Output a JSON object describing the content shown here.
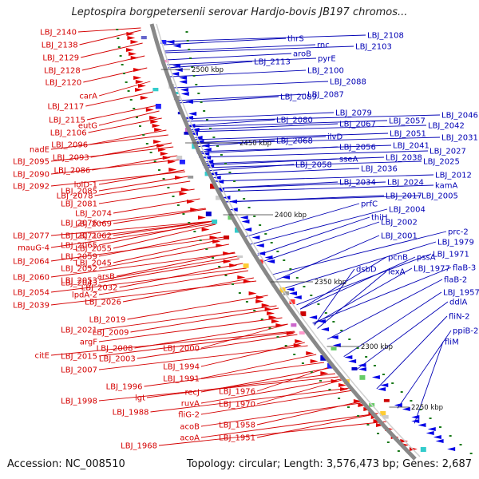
{
  "title": "Leptospira borgpetersenii serovar Hardjo-bovis JB197 chromos...",
  "footer": {
    "accession": "Accession: NC_008510",
    "summary": "Topology: circular; Length: 3,576,473 bp; Genes: 2,687"
  },
  "scale_labels": [
    "2500 kbp",
    "2450 kbp",
    "2400 kbp",
    "2350 kbp",
    "2300 kbp",
    "2250 kbp"
  ],
  "left_labels": [
    "LBJ_2140",
    "LBJ_2138",
    "LBJ_2129",
    "LBJ_2128",
    "LBJ_2120",
    "carA",
    "LBJ_2117",
    "LBJ_2115",
    "eutG",
    "LBJ_2106",
    "LBJ_2096",
    "nadE",
    "LBJ_2093",
    "LBJ_2095",
    "LBJ_2086",
    "LBJ_2090",
    "lolD-1",
    "LBJ_2092",
    "LBJ_2085",
    "LBJ_2078",
    "LBJ_2081",
    "LBJ_2074",
    "LBJ_2076",
    "LBJ_2069",
    "LBJ_2077",
    "LBJ_2071",
    "LBJ_2062",
    "LBJ_2065",
    "mauG-4",
    "LBJ_2059",
    "LBJ_2055",
    "LBJ_2064",
    "LBJ_2052",
    "LBJ_2045",
    "LBJ_2060",
    "LBJ_2053",
    "arsB",
    "LBJ_2043",
    "LBJ_2054",
    "LBJ_2032",
    "lpdA-2",
    "LBJ_2026",
    "LBJ_2039",
    "LBJ_2019",
    "LBJ_2021",
    "LBJ_2009",
    "argF",
    "LBJ_2008",
    "LBJ_2000",
    "citE",
    "LBJ_2015",
    "LBJ_2003",
    "LBJ_2007",
    "LBJ_1994",
    "LBJ_1991",
    "LBJ_1996",
    "recJ",
    "LBJ_1976",
    "lgt",
    "LBJ_1998",
    "ruvA",
    "LBJ_1970",
    "LBJ_1988",
    "fliG-2",
    "acoB",
    "LBJ_1958",
    "acoA",
    "LBJ_1951",
    "LBJ_1968"
  ],
  "right_labels": [
    "LBJ_2108",
    "thrS",
    "rnc",
    "LBJ_2103",
    "aroB",
    "pyrE",
    "LBJ_2113",
    "LBJ_2100",
    "LBJ_2088",
    "LBJ_2087",
    "LBJ_2089",
    "LBJ_2079",
    "LBJ_2080",
    "LBJ_2057",
    "LBJ_2046",
    "LBJ_2067",
    "LBJ_2042",
    "LBJ_2051",
    "ilvD",
    "LBJ_2068",
    "LBJ_2031",
    "LBJ_2041",
    "LBJ_2056",
    "LBJ_2027",
    "LBJ_2038",
    "sseA",
    "LBJ_2025",
    "LBJ_2058",
    "LBJ_2036",
    "LBJ_2012",
    "LBJ_2034",
    "LBJ_2024",
    "kamA",
    "LBJ_2017",
    "LBJ_2005",
    "prfC",
    "LBJ_2004",
    "thiH",
    "LBJ_2002",
    "LBJ_2001",
    "prc-2",
    "LBJ_1979",
    "pssA",
    "pcnB",
    "LBJ_1971",
    "LBJ_1977",
    "flaB-3",
    "dsbD",
    "lexA",
    "flaB-2",
    "LBJ_1957",
    "ddlA",
    "fliN-2",
    "ppiB-2",
    "fliM"
  ],
  "colors": {
    "forward": "#e00000",
    "reverse": "#0000e6",
    "backbone": "#888888",
    "tick": "#1a7a1a",
    "red_label": "#d40000",
    "blue_label": "#0000b4"
  }
}
